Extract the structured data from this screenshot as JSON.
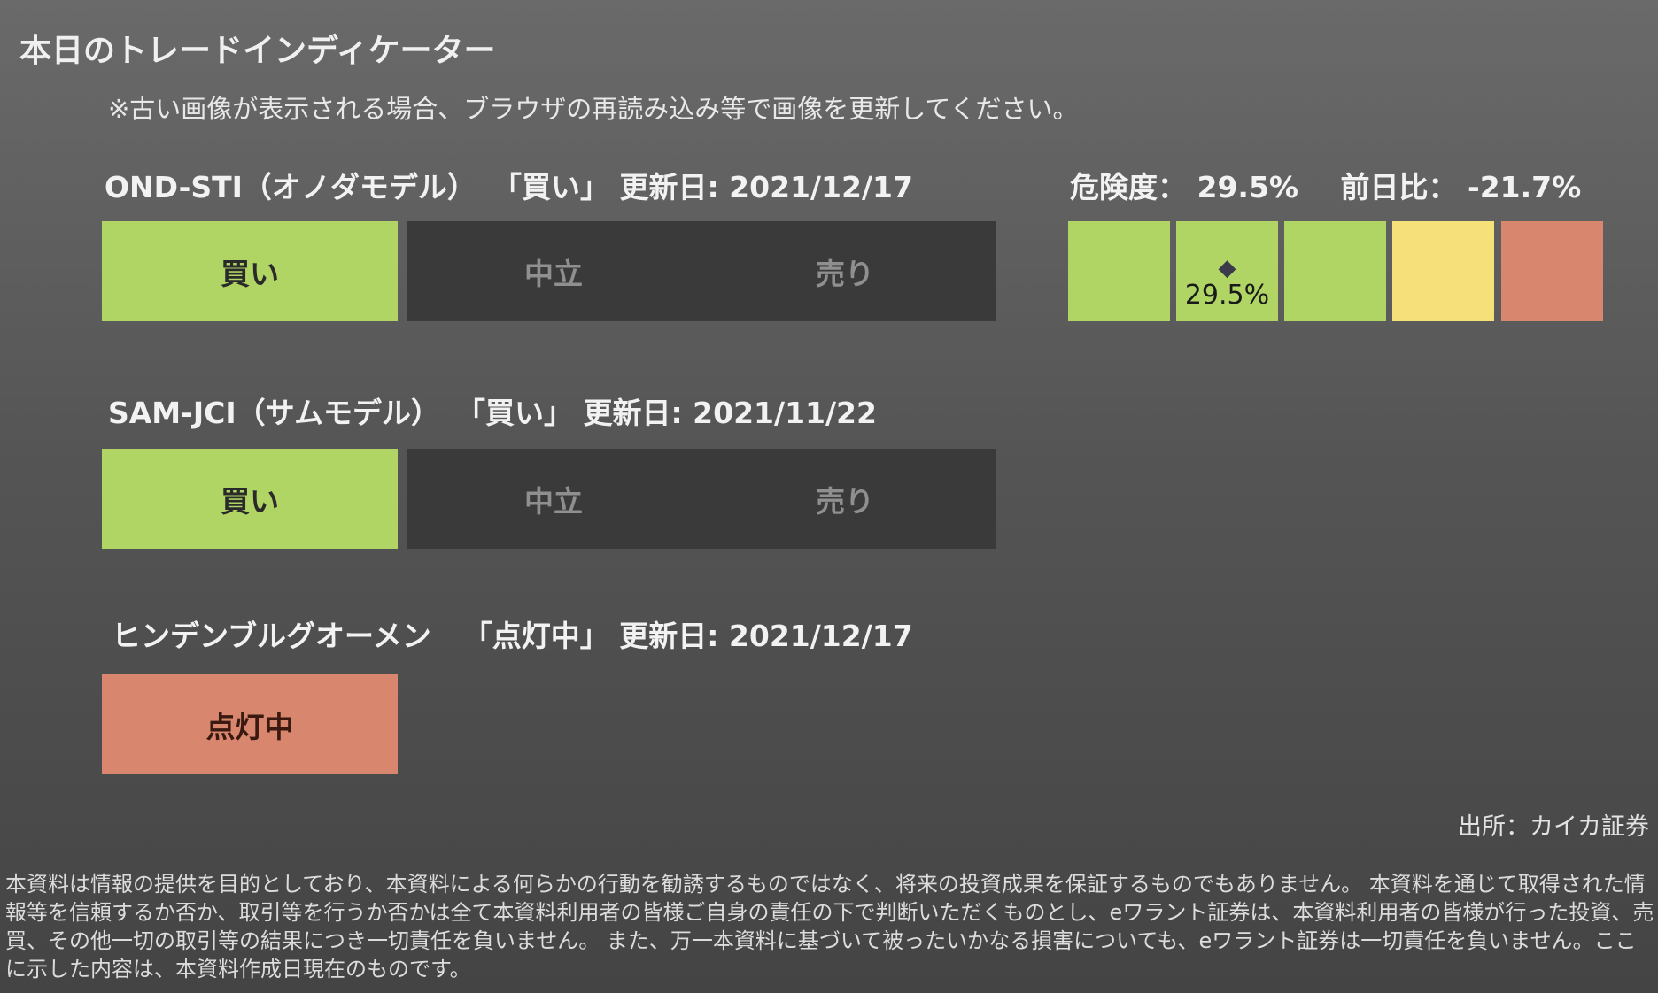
{
  "title": "本日のトレードインディケーター",
  "notice": "※古い画像が表示される場合、ブラウザの再読み込み等で画像を更新してください。",
  "indicators": [
    {
      "name": "OND-STI（オノダモデル）",
      "status": "「買い」",
      "updated_label": "更新日:",
      "updated_date": "2021/12/17",
      "options": [
        "買い",
        "中立",
        "売り"
      ],
      "active": "買い"
    },
    {
      "name": "SAM-JCI（サムモデル）",
      "status": "「買い」",
      "updated_label": "更新日:",
      "updated_date": "2021/11/22",
      "options": [
        "買い",
        "中立",
        "売り"
      ],
      "active": "買い"
    },
    {
      "name": "ヒンデンブルグオーメン",
      "status": "「点灯中」",
      "updated_label": "更新日:",
      "updated_date": "2021/12/17",
      "options": [
        "点灯中"
      ],
      "active": "点灯中"
    }
  ],
  "risk": {
    "label": "危険度：",
    "value": "29.5%",
    "change_label": "前日比：",
    "change_value": "-21.7%",
    "marker_glyph": "◆",
    "marker_value": "29.5%",
    "marker_segment": 2,
    "segment_colors": [
      "#b0d564",
      "#b0d564",
      "#b0d564",
      "#f5e07a",
      "#d9866e"
    ]
  },
  "source": "出所：カイカ証券",
  "disclaimer": "本資料は情報の提供を目的としており、本資料による何らかの行動を勧誘するものではなく、将来の投資成果を保証するものでもありません。 本資料を通じて取得された情報等を信頼するか否か、取引等を行うか否かは全て本資料利用者の皆様ご自身の責任の下で判断いただくものとし、eワラント証券は、本資料利用者の皆様が行った投資、売買、その他一切の取引等の結果につき一切責任を負いません。 また、万一本資料に基づいて被ったいかなる損害についても、eワラント証券は一切責任を負いません。ここに示した内容は、本資料作成日現在のものです。",
  "colors": {
    "buy": "#b0d564",
    "neutral_bg": "#3a3a3a",
    "lit": "#d9866e",
    "caution": "#f5e07a"
  }
}
